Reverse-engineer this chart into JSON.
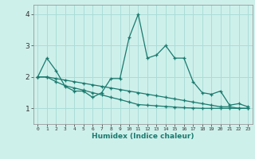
{
  "xlabel": "Humidex (Indice chaleur)",
  "bg_color": "#cef0eb",
  "grid_color": "#aaddd7",
  "line_color": "#1a7a6e",
  "xlim": [
    -0.5,
    23.5
  ],
  "ylim": [
    0.5,
    4.3
  ],
  "x_ticks": [
    0,
    1,
    2,
    3,
    4,
    5,
    6,
    7,
    8,
    9,
    10,
    11,
    12,
    13,
    14,
    15,
    16,
    17,
    18,
    19,
    20,
    21,
    22,
    23
  ],
  "y_ticks": [
    1,
    2,
    3,
    4
  ],
  "series1_x": [
    0,
    1,
    2,
    3,
    4,
    5,
    6,
    7,
    8,
    9,
    10,
    11,
    12,
    13,
    14,
    15,
    16,
    17,
    18,
    19,
    20,
    21,
    22,
    23
  ],
  "series1_y": [
    2.0,
    2.6,
    2.2,
    1.7,
    1.55,
    1.55,
    1.35,
    1.5,
    1.95,
    1.95,
    3.25,
    4.0,
    2.6,
    2.7,
    3.0,
    2.6,
    2.6,
    1.85,
    1.5,
    1.45,
    1.55,
    1.1,
    1.15,
    1.05
  ],
  "series2_x": [
    0,
    1,
    2,
    3,
    4,
    5,
    6,
    7,
    8,
    9,
    10,
    11,
    12,
    13,
    14,
    15,
    16,
    17,
    18,
    19,
    20,
    21,
    22,
    23
  ],
  "series2_y": [
    2.0,
    2.0,
    1.95,
    1.9,
    1.85,
    1.8,
    1.75,
    1.7,
    1.65,
    1.6,
    1.55,
    1.5,
    1.45,
    1.4,
    1.35,
    1.3,
    1.25,
    1.2,
    1.15,
    1.1,
    1.05,
    1.05,
    1.0,
    1.0
  ],
  "series3_x": [
    0,
    1,
    2,
    3,
    4,
    5,
    6,
    7,
    8,
    9,
    10,
    11,
    12,
    13,
    14,
    15,
    16,
    17,
    18,
    19,
    20,
    21,
    22,
    23
  ],
  "series3_y": [
    2.0,
    2.0,
    1.85,
    1.72,
    1.65,
    1.58,
    1.5,
    1.43,
    1.35,
    1.28,
    1.2,
    1.12,
    1.1,
    1.08,
    1.06,
    1.04,
    1.02,
    1.01,
    1.0,
    1.0,
    1.0,
    1.0,
    1.0,
    1.0
  ]
}
